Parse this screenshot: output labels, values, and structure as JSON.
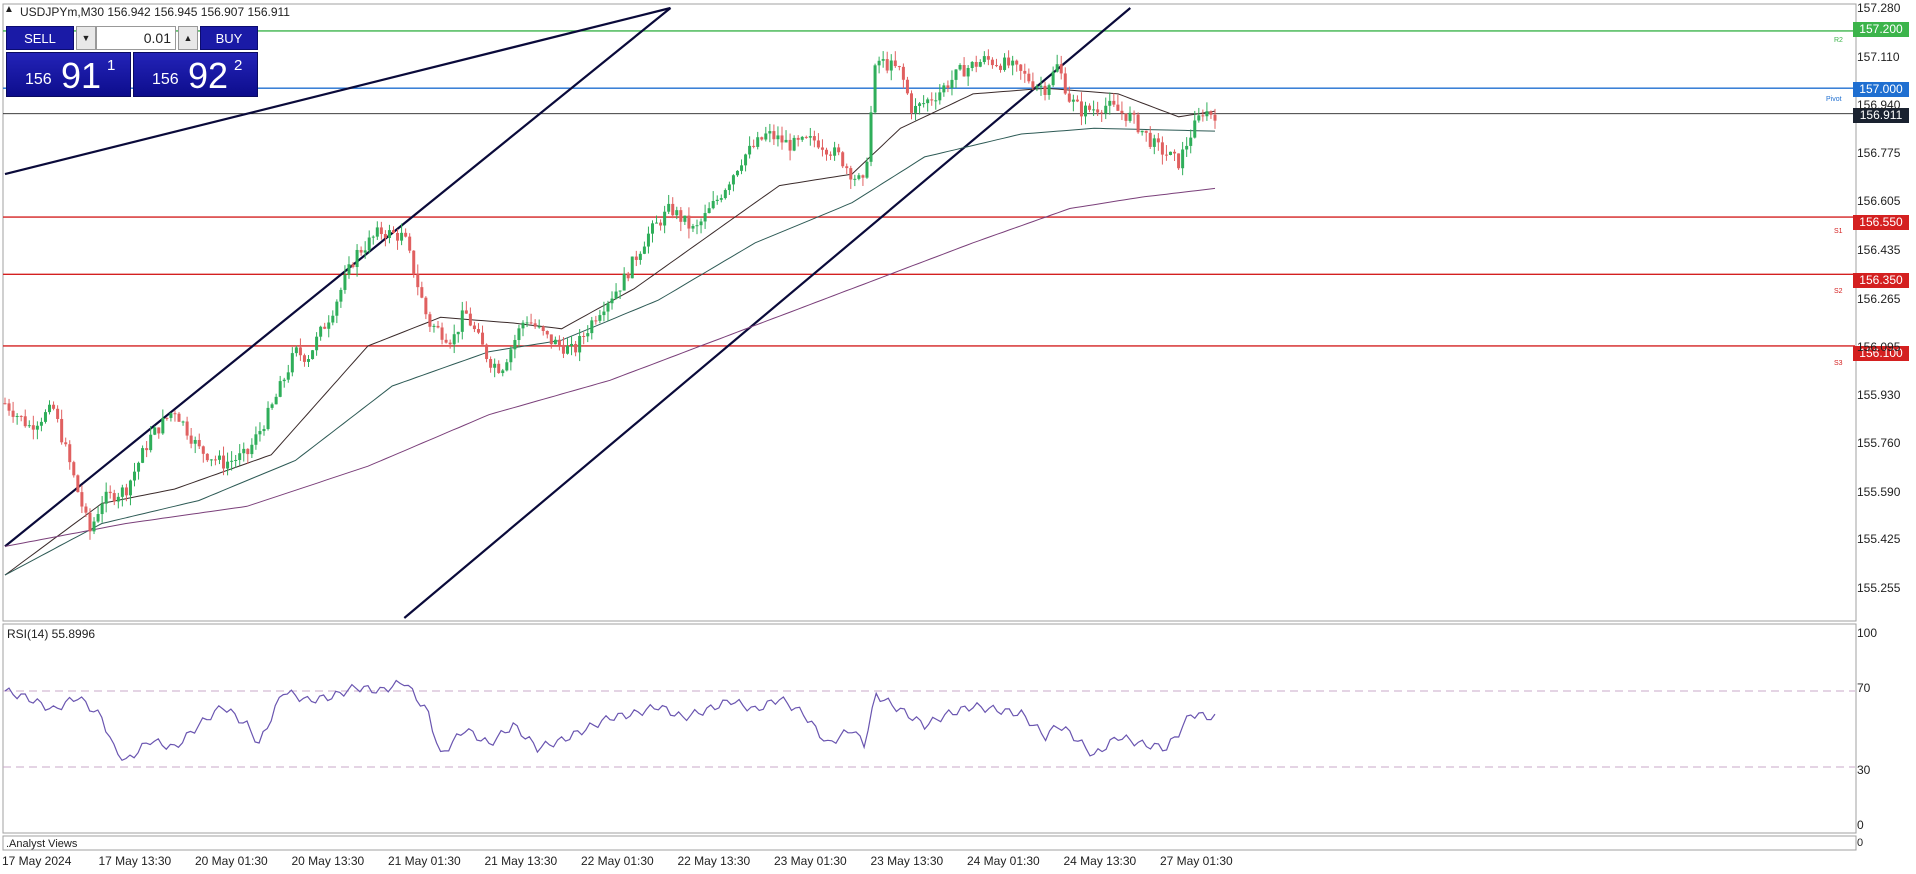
{
  "header": {
    "symbol_line": "USDJPYm,M30  156.942 156.945 156.907 156.911",
    "collapse_icon": "triangle-up-icon"
  },
  "trade_panel": {
    "sell_label": "SELL",
    "buy_label": "BUY",
    "volume": "0.01",
    "sell_price_prefix": "156",
    "sell_price_big": "91",
    "sell_price_sup": "1",
    "buy_price_prefix": "156",
    "buy_price_big": "92",
    "buy_price_sup": "2",
    "down_icon": "arrow-down-icon",
    "up_icon": "arrow-up-icon"
  },
  "rsi": {
    "label": "RSI(14) 55.8996",
    "levels": [
      "100",
      "70",
      "30",
      "0"
    ],
    "upper_level": 70,
    "lower_level": 30
  },
  "bottom_panel": {
    "label": ".Analyst Views",
    "axis_label": "0"
  },
  "levels": {
    "r2": {
      "value": "157.200",
      "tag": "R2",
      "color": "#3cb44b"
    },
    "pivot": {
      "value": "157.000",
      "tag": "Pivot",
      "color": "#1f6fd1"
    },
    "current": {
      "value": "156.911",
      "color": "#222222"
    },
    "s1": {
      "value": "156.550",
      "tag": "S1",
      "color": "#d42020"
    },
    "s2": {
      "value": "156.350",
      "tag": "S2",
      "color": "#d42020"
    },
    "s3": {
      "value": "156.100",
      "tag": "S3",
      "color": "#d42020"
    }
  },
  "chart_data": {
    "type": "candlestick",
    "symbol": "USDJPYm",
    "timeframe": "M30",
    "ylim": [
      155.15,
      157.28
    ],
    "y_ticks": [
      "157.280",
      "157.110",
      "156.940",
      "156.775",
      "156.605",
      "156.435",
      "156.265",
      "156.095",
      "155.930",
      "155.760",
      "155.590",
      "155.425",
      "155.255"
    ],
    "x_ticks": [
      "17 May 2024",
      "17 May 13:30",
      "20 May 01:30",
      "20 May 13:30",
      "21 May 01:30",
      "21 May 13:30",
      "22 May 01:30",
      "22 May 13:30",
      "23 May 01:30",
      "23 May 13:30",
      "24 May 01:30",
      "24 May 13:30",
      "27 May 01:30"
    ],
    "close_path": [
      [
        0,
        155.9
      ],
      [
        0.02,
        155.82
      ],
      [
        0.04,
        155.88
      ],
      [
        0.05,
        155.74
      ],
      [
        0.07,
        155.45
      ],
      [
        0.08,
        155.56
      ],
      [
        0.1,
        155.6
      ],
      [
        0.12,
        155.78
      ],
      [
        0.14,
        155.88
      ],
      [
        0.16,
        155.74
      ],
      [
        0.18,
        155.69
      ],
      [
        0.2,
        155.72
      ],
      [
        0.22,
        155.88
      ],
      [
        0.24,
        156.08
      ],
      [
        0.25,
        156.06
      ],
      [
        0.27,
        156.22
      ],
      [
        0.29,
        156.42
      ],
      [
        0.31,
        156.5
      ],
      [
        0.33,
        156.48
      ],
      [
        0.35,
        156.18
      ],
      [
        0.37,
        156.12
      ],
      [
        0.38,
        156.22
      ],
      [
        0.4,
        156.05
      ],
      [
        0.41,
        156.02
      ],
      [
        0.43,
        156.2
      ],
      [
        0.45,
        156.12
      ],
      [
        0.47,
        156.08
      ],
      [
        0.49,
        156.22
      ],
      [
        0.51,
        156.32
      ],
      [
        0.53,
        156.48
      ],
      [
        0.55,
        156.58
      ],
      [
        0.57,
        156.5
      ],
      [
        0.59,
        156.62
      ],
      [
        0.61,
        156.76
      ],
      [
        0.63,
        156.84
      ],
      [
        0.65,
        156.8
      ],
      [
        0.67,
        156.82
      ],
      [
        0.69,
        156.76
      ],
      [
        0.7,
        156.7
      ],
      [
        0.71,
        156.66
      ],
      [
        0.72,
        157.1
      ],
      [
        0.74,
        157.06
      ],
      [
        0.75,
        156.92
      ],
      [
        0.77,
        156.98
      ],
      [
        0.79,
        157.06
      ],
      [
        0.81,
        157.1
      ],
      [
        0.83,
        157.08
      ],
      [
        0.85,
        157.02
      ],
      [
        0.86,
        157.0
      ],
      [
        0.87,
        157.08
      ],
      [
        0.88,
        156.96
      ],
      [
        0.89,
        156.92
      ],
      [
        0.91,
        156.94
      ],
      [
        0.93,
        156.9
      ],
      [
        0.95,
        156.8
      ],
      [
        0.97,
        156.74
      ],
      [
        0.98,
        156.84
      ],
      [
        0.99,
        156.92
      ],
      [
        1.0,
        156.911
      ]
    ],
    "ma_fast_path": [
      [
        0,
        155.3
      ],
      [
        0.08,
        155.55
      ],
      [
        0.14,
        155.6
      ],
      [
        0.22,
        155.72
      ],
      [
        0.3,
        156.1
      ],
      [
        0.36,
        156.2
      ],
      [
        0.42,
        156.18
      ],
      [
        0.46,
        156.16
      ],
      [
        0.52,
        156.3
      ],
      [
        0.58,
        156.48
      ],
      [
        0.64,
        156.66
      ],
      [
        0.7,
        156.7
      ],
      [
        0.74,
        156.86
      ],
      [
        0.8,
        156.98
      ],
      [
        0.86,
        157.0
      ],
      [
        0.92,
        156.98
      ],
      [
        0.97,
        156.9
      ],
      [
        1.0,
        156.92
      ]
    ],
    "ma_mid_path": [
      [
        0,
        155.3
      ],
      [
        0.08,
        155.48
      ],
      [
        0.16,
        155.56
      ],
      [
        0.24,
        155.7
      ],
      [
        0.32,
        155.96
      ],
      [
        0.4,
        156.08
      ],
      [
        0.46,
        156.12
      ],
      [
        0.54,
        156.26
      ],
      [
        0.62,
        156.46
      ],
      [
        0.7,
        156.6
      ],
      [
        0.76,
        156.76
      ],
      [
        0.84,
        156.84
      ],
      [
        0.9,
        156.86
      ],
      [
        1.0,
        156.85
      ]
    ],
    "ma_slow_path": [
      [
        0,
        155.4
      ],
      [
        0.1,
        155.48
      ],
      [
        0.2,
        155.54
      ],
      [
        0.3,
        155.68
      ],
      [
        0.4,
        155.86
      ],
      [
        0.5,
        155.98
      ],
      [
        0.6,
        156.14
      ],
      [
        0.7,
        156.3
      ],
      [
        0.8,
        156.46
      ],
      [
        0.88,
        156.58
      ],
      [
        0.94,
        156.62
      ],
      [
        1.0,
        156.65
      ]
    ],
    "rsi_path": [
      [
        0,
        70
      ],
      [
        0.02,
        66
      ],
      [
        0.04,
        60
      ],
      [
        0.06,
        67
      ],
      [
        0.08,
        56
      ],
      [
        0.09,
        40
      ],
      [
        0.1,
        33
      ],
      [
        0.12,
        44
      ],
      [
        0.14,
        40
      ],
      [
        0.16,
        52
      ],
      [
        0.18,
        62
      ],
      [
        0.2,
        52
      ],
      [
        0.21,
        42
      ],
      [
        0.23,
        70
      ],
      [
        0.25,
        65
      ],
      [
        0.27,
        67
      ],
      [
        0.29,
        72
      ],
      [
        0.31,
        70
      ],
      [
        0.33,
        75
      ],
      [
        0.35,
        58
      ],
      [
        0.36,
        36
      ],
      [
        0.38,
        50
      ],
      [
        0.4,
        42
      ],
      [
        0.42,
        52
      ],
      [
        0.44,
        40
      ],
      [
        0.46,
        44
      ],
      [
        0.48,
        50
      ],
      [
        0.5,
        56
      ],
      [
        0.52,
        58
      ],
      [
        0.54,
        62
      ],
      [
        0.56,
        56
      ],
      [
        0.58,
        60
      ],
      [
        0.6,
        65
      ],
      [
        0.62,
        60
      ],
      [
        0.64,
        66
      ],
      [
        0.66,
        58
      ],
      [
        0.68,
        42
      ],
      [
        0.7,
        50
      ],
      [
        0.71,
        42
      ],
      [
        0.72,
        68
      ],
      [
        0.74,
        60
      ],
      [
        0.76,
        52
      ],
      [
        0.78,
        58
      ],
      [
        0.8,
        62
      ],
      [
        0.82,
        60
      ],
      [
        0.84,
        58
      ],
      [
        0.86,
        46
      ],
      [
        0.87,
        52
      ],
      [
        0.88,
        48
      ],
      [
        0.9,
        36
      ],
      [
        0.92,
        46
      ],
      [
        0.94,
        42
      ],
      [
        0.96,
        40
      ],
      [
        0.97,
        48
      ],
      [
        0.98,
        58
      ],
      [
        1.0,
        55.9
      ]
    ],
    "channel_lines": [
      {
        "from": [
          0.0,
          156.7
        ],
        "to": [
          0.55,
          157.28
        ]
      },
      {
        "from": [
          0.0,
          155.4
        ],
        "to": [
          0.55,
          157.28
        ]
      },
      {
        "from": [
          0.33,
          155.15
        ],
        "to": [
          0.93,
          157.28
        ]
      }
    ]
  }
}
